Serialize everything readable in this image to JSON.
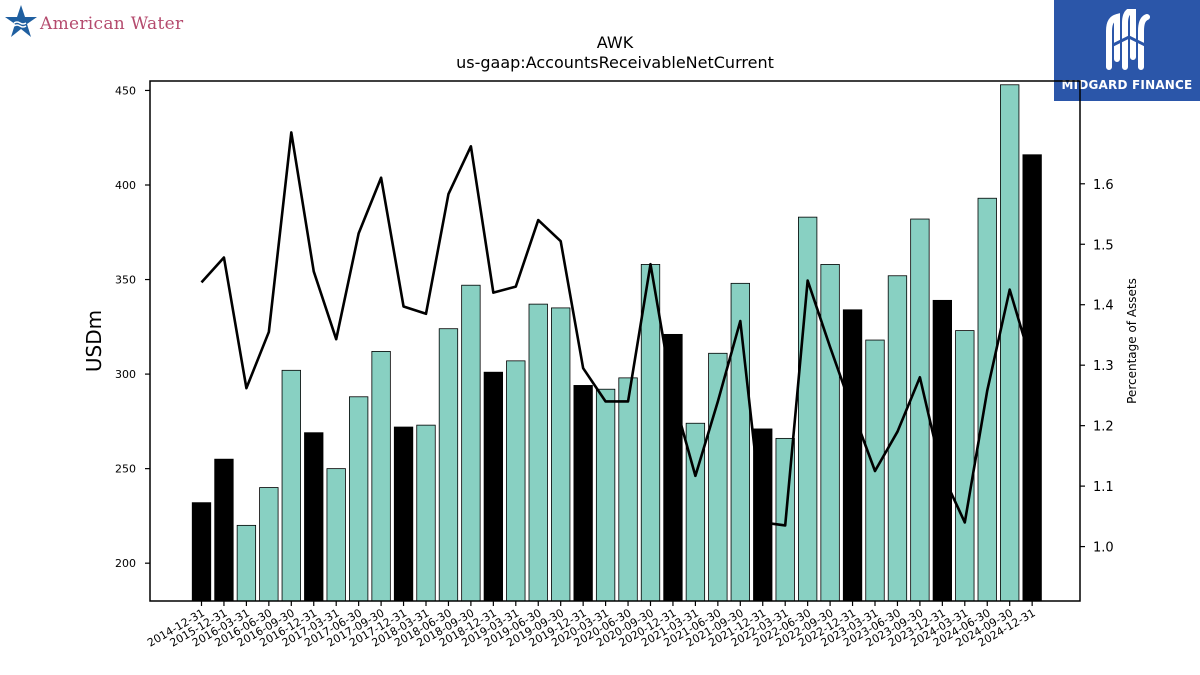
{
  "logos": {
    "left_text": "American Water",
    "right_text": "MIDGARD FINANCE",
    "left_icon": "star-water-icon",
    "right_icon": "midgard-m-icon"
  },
  "colors": {
    "bar_regular": "#88d0c2",
    "bar_year_end": "#000000",
    "line": "#000000",
    "logo_left_text": "#b54b6e",
    "logo_left_star": "#1f5fa0",
    "logo_right_bg": "#2b56a9"
  },
  "chart_data": {
    "type": "bar",
    "title": "AWK",
    "subtitle": "us-gaap:AccountsReceivableNetCurrent",
    "ylabel": "USDm",
    "y2label": "Percentage of Assets",
    "ylim": [
      180,
      455
    ],
    "y2lim": [
      0.91,
      1.77
    ],
    "yticks": [
      200,
      250,
      300,
      350,
      400,
      450
    ],
    "y2ticks": [
      1.0,
      1.1,
      1.2,
      1.3,
      1.4,
      1.5,
      1.6
    ],
    "grid": false,
    "categories": [
      "2014-12-31",
      "2015-12-31",
      "2016-03-31",
      "2016-06-30",
      "2016-09-30",
      "2016-12-31",
      "2017-03-31",
      "2017-06-30",
      "2017-09-30",
      "2017-12-31",
      "2018-03-31",
      "2018-06-30",
      "2018-09-30",
      "2018-12-31",
      "2019-03-31",
      "2019-06-30",
      "2019-09-30",
      "2019-12-31",
      "2020-03-31",
      "2020-06-30",
      "2020-09-30",
      "2020-12-31",
      "2021-03-31",
      "2021-06-30",
      "2021-09-30",
      "2021-12-31",
      "2022-03-31",
      "2022-06-30",
      "2022-09-30",
      "2022-12-31",
      "2023-03-31",
      "2023-06-30",
      "2023-09-30",
      "2023-12-31",
      "2024-03-31",
      "2024-06-30",
      "2024-09-30",
      "2024-12-31"
    ],
    "series": [
      {
        "type": "bar",
        "values": [
          232,
          255,
          220,
          240,
          302,
          269,
          250,
          288,
          312,
          272,
          273,
          324,
          347,
          301,
          307,
          337,
          335,
          294,
          292,
          298,
          358,
          321,
          274,
          311,
          348,
          271,
          266,
          383,
          358,
          334,
          318,
          352,
          382,
          339,
          323,
          393,
          453,
          416
        ]
      },
      {
        "type": "line",
        "axis": "right",
        "values": [
          1.437,
          1.478,
          1.262,
          1.355,
          1.685,
          1.455,
          1.343,
          1.518,
          1.61,
          1.397,
          1.385,
          1.583,
          1.662,
          1.42,
          1.43,
          1.54,
          1.505,
          1.295,
          1.24,
          1.24,
          1.467,
          1.25,
          1.117,
          1.24,
          1.373,
          1.04,
          1.035,
          1.44,
          1.33,
          1.225,
          1.125,
          1.19,
          1.28,
          1.12,
          1.04,
          1.258,
          1.425,
          1.3
        ]
      }
    ]
  }
}
